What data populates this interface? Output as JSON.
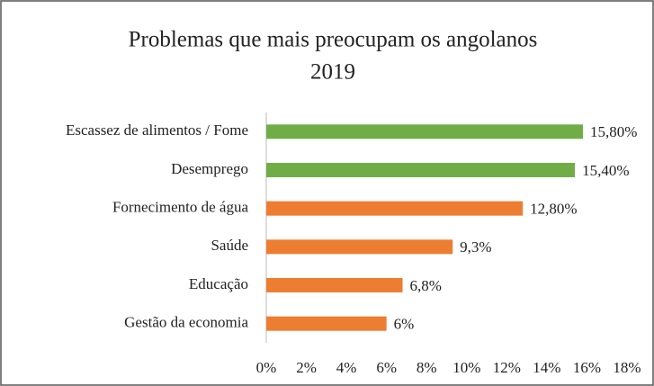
{
  "chart_data": {
    "type": "bar",
    "orientation": "horizontal",
    "title": "Problemas que mais preocupam os angolanos",
    "subtitle": "2019",
    "categories": [
      "Escassez de alimentos / Fome",
      "Desemprego",
      "Fornecimento de água",
      "Saúde",
      "Educação",
      "Gestão da economia"
    ],
    "values": [
      15.8,
      15.4,
      12.8,
      9.3,
      6.8,
      6
    ],
    "value_labels": [
      "15,80%",
      "15,40%",
      "12,80%",
      "9,3%",
      "6,8%",
      "6%"
    ],
    "colors": [
      "#70ad47",
      "#70ad47",
      "#ed7d31",
      "#ed7d31",
      "#ed7d31",
      "#ed7d31"
    ],
    "xlim": [
      0,
      18
    ],
    "xticks": [
      {
        "value": 0,
        "label": "0%"
      },
      {
        "value": 2,
        "label": "2%"
      },
      {
        "value": 4,
        "label": "4%"
      },
      {
        "value": 6,
        "label": "6%"
      },
      {
        "value": 8,
        "label": "8%"
      },
      {
        "value": 10,
        "label": "10%"
      },
      {
        "value": 12,
        "label": "12%"
      },
      {
        "value": 14,
        "label": "14%"
      },
      {
        "value": 16,
        "label": "16%"
      },
      {
        "value": 18,
        "label": "18%"
      }
    ],
    "grid": false
  }
}
